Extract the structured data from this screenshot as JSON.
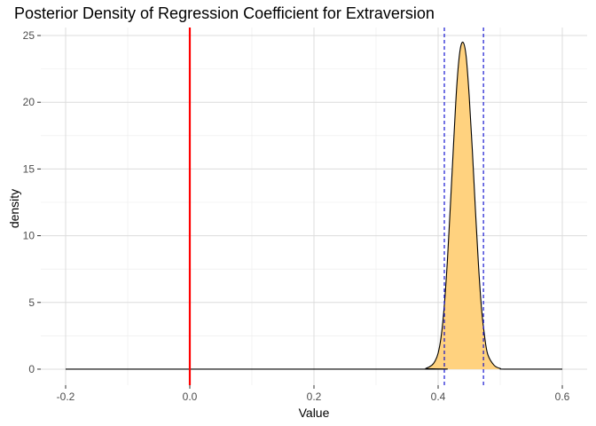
{
  "chart_data": {
    "type": "area",
    "title": "Posterior Density of Regression Coefficient for Extraversion",
    "xlabel": "Value",
    "ylabel": "density",
    "xlim": [
      -0.24,
      0.64
    ],
    "ylim": [
      -1.2,
      25.6
    ],
    "x_ticks": [
      -0.2,
      0.0,
      0.2,
      0.4,
      0.6
    ],
    "x_tick_labels": [
      "-0.2",
      "0.0",
      "0.2",
      "0.4",
      "0.6"
    ],
    "y_ticks": [
      0,
      5,
      10,
      15,
      20,
      25
    ],
    "y_tick_labels": [
      "0",
      "5",
      "10",
      "15",
      "20",
      "25"
    ],
    "grid": true,
    "background": "white",
    "series": [
      {
        "kind": "density",
        "x": [
          -0.2,
          0.37,
          0.38,
          0.39,
          0.395,
          0.4,
          0.405,
          0.41,
          0.415,
          0.42,
          0.425,
          0.43,
          0.435,
          0.44,
          0.445,
          0.45,
          0.455,
          0.46,
          0.465,
          0.47,
          0.475,
          0.48,
          0.49,
          0.5,
          0.51,
          0.6
        ],
        "y": [
          0,
          0,
          0.05,
          0.3,
          0.6,
          1.2,
          2.5,
          4.8,
          8.2,
          12.5,
          17.0,
          21.2,
          23.8,
          24.5,
          23.5,
          20.5,
          16.5,
          12.0,
          7.8,
          4.5,
          2.4,
          1.1,
          0.3,
          0.05,
          0,
          0
        ],
        "fill": "#FFD27F",
        "line_color": "#000000"
      }
    ],
    "reference_lines": [
      {
        "axis": "x",
        "value": 0.0,
        "color": "#FF0000",
        "style": "solid"
      },
      {
        "axis": "x",
        "value": 0.41,
        "color": "#0000CD",
        "style": "dashed"
      },
      {
        "axis": "x",
        "value": 0.473,
        "color": "#0000CD",
        "style": "dashed"
      }
    ]
  }
}
